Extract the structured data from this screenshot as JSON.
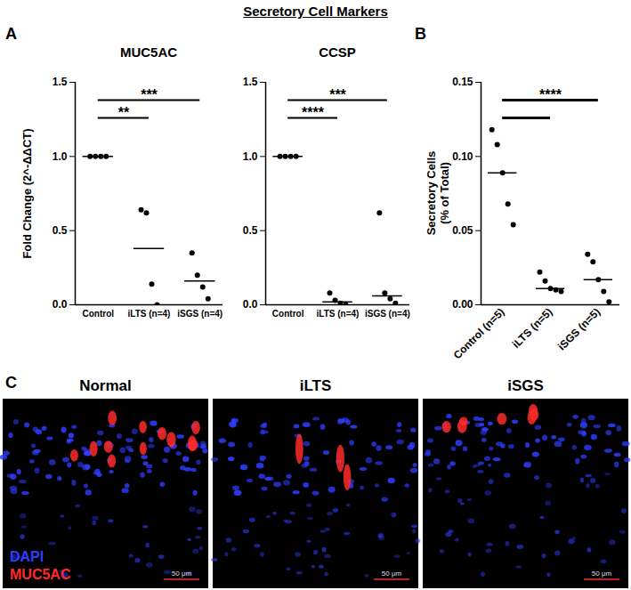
{
  "figure": {
    "title": "Secretory Cell Markers",
    "panel_labels": [
      "A",
      "B",
      "C"
    ]
  },
  "chart_data": [
    {
      "type": "scatter",
      "title": "MUC5AC",
      "y_label": "Fold Change (2^-ΔΔCT)",
      "categories": [
        "Control",
        "iLTS (n=4)",
        "iSGS (n=4)"
      ],
      "values": [
        [
          1,
          1,
          1,
          1
        ],
        [
          0.64,
          0.62,
          0.14,
          0
        ],
        [
          0.35,
          0.2,
          0.12,
          0.04
        ]
      ],
      "medians": [
        1,
        0.38,
        0.16
      ],
      "color": "#000000",
      "ylim": [
        0,
        1.5
      ],
      "yticks": [
        {
          "value": 0,
          "label": "0.0"
        },
        0.5,
        {
          "value": 1,
          "label": "1.0"
        },
        1.5
      ],
      "significance": [
        {
          "from": "Control",
          "to": "iLTS (n=4)",
          "label": "**"
        },
        {
          "from": "Control",
          "to": "iSGS (n=4)",
          "label": "***"
        }
      ]
    },
    {
      "type": "scatter",
      "title": "CCSP",
      "categories": [
        "Control",
        "iLTS (n=4)",
        "iSGS (n=4)"
      ],
      "values": [
        [
          1,
          1,
          1,
          1
        ],
        [
          0.08,
          0.03,
          0.01,
          0
        ],
        [
          0.62,
          0.08,
          0.04,
          0.01
        ]
      ],
      "medians": [
        1,
        0.02,
        0.06
      ],
      "color": "#000000",
      "ylim": [
        0,
        1.5
      ],
      "yticks": [
        {
          "value": 0,
          "label": "0.0"
        },
        0.5,
        {
          "value": 1,
          "label": "1.0"
        },
        1.5
      ],
      "significance": [
        {
          "from": "Control",
          "to": "iLTS (n=4)",
          "label": "****"
        },
        {
          "from": "Control",
          "to": "iSGS (n=4)",
          "label": "***"
        }
      ]
    },
    {
      "type": "scatter",
      "y_label": [
        "Secretory Cells",
        "(% of Total)"
      ],
      "categories": [
        "Control (n=5)",
        "iLTS (n=5)",
        "iSGS (n=5)"
      ],
      "values": [
        [
          0.118,
          0.108,
          0.089,
          0.068,
          0.054
        ],
        [
          0.022,
          0.016,
          0.011,
          0.01,
          0.009
        ],
        [
          0.034,
          0.029,
          0.017,
          0.009,
          0.002
        ]
      ],
      "medians": [
        0.089,
        0.011,
        0.017
      ],
      "color": "#000000",
      "ylim": [
        0,
        0.15
      ],
      "yticks": [
        {
          "value": 0,
          "label": "0.00"
        },
        0.05,
        {
          "value": 0.1,
          "label": "0.10"
        },
        0.15
      ],
      "significance": [
        {
          "from": "Control (n=5)",
          "to": "iLTS (n=5)"
        },
        {
          "from": "Control (n=5)",
          "to": "iSGS (n=5)",
          "label": "****"
        }
      ]
    }
  ],
  "images": {
    "titles": [
      "Normal",
      "iLTS",
      "iSGS"
    ],
    "channels": [
      {
        "name": "DAPI",
        "color": "#2f3dff"
      },
      {
        "name": "MUC5AC",
        "color": "#ff2a2a"
      }
    ],
    "scale_bar": "50 μm"
  }
}
